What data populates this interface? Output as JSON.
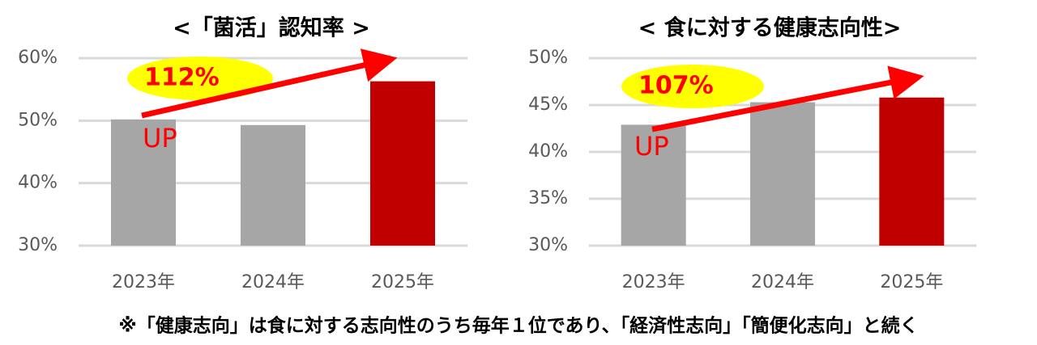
{
  "chart_data": [
    {
      "type": "bar",
      "title": "<「菌活」認知率 >",
      "categories": [
        "2023年",
        "2024年",
        "2025年"
      ],
      "values": [
        50.2,
        49.3,
        56.3
      ],
      "colors": [
        "#a6a6a6",
        "#a6a6a6",
        "#c00000"
      ],
      "ylim": [
        30,
        60
      ],
      "yticks": [
        {
          "value": 30,
          "label": "30%"
        },
        {
          "value": 40,
          "label": "40%"
        },
        {
          "value": 50,
          "label": "50%"
        },
        {
          "value": 60,
          "label": "60%"
        }
      ],
      "grid": true,
      "annotations": [
        "112%",
        "UP"
      ]
    },
    {
      "type": "bar",
      "title": "< 食に対する健康志向性>",
      "categories": [
        "2023年",
        "2024年",
        "2025年"
      ],
      "values": [
        42.9,
        45.3,
        45.8
      ],
      "colors": [
        "#a6a6a6",
        "#a6a6a6",
        "#c00000"
      ],
      "ylim": [
        30,
        50
      ],
      "yticks": [
        {
          "value": 30,
          "label": "30%"
        },
        {
          "value": 35,
          "label": "35%"
        },
        {
          "value": 40,
          "label": "40%"
        },
        {
          "value": 45,
          "label": "45%"
        },
        {
          "value": 50,
          "label": "50%"
        }
      ],
      "grid": true,
      "annotations": [
        "107%",
        "UP"
      ]
    }
  ],
  "footnote": "※「健康志向」は食に対する志向性のうち毎年１位であり、「経済性志向」「簡便化志向」と続く"
}
